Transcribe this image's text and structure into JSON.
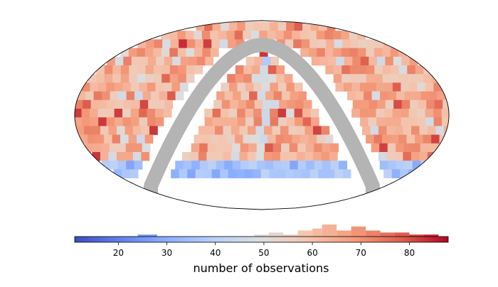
{
  "chart_data": {
    "type": "heatmap",
    "projection": "Kavrayskiy-like sky map",
    "value_range": [
      11,
      88
    ],
    "colormap": "coolwarm",
    "colorbar": {
      "label": "number of observations",
      "ticks": [
        20,
        30,
        40,
        50,
        60,
        70,
        80
      ],
      "orientation": "horizontal",
      "histogram": [
        {
          "x": 12,
          "count": 0
        },
        {
          "x": 16,
          "count": 0
        },
        {
          "x": 20,
          "count": 0
        },
        {
          "x": 24,
          "count": 1
        },
        {
          "x": 28,
          "count": 0
        },
        {
          "x": 32,
          "count": 0
        },
        {
          "x": 36,
          "count": 0
        },
        {
          "x": 40,
          "count": 0
        },
        {
          "x": 44,
          "count": 0
        },
        {
          "x": 48,
          "count": 1
        },
        {
          "x": 51,
          "count": 2
        },
        {
          "x": 54,
          "count": 1
        },
        {
          "x": 57,
          "count": 3
        },
        {
          "x": 60,
          "count": 4
        },
        {
          "x": 62,
          "count": 6
        },
        {
          "x": 65,
          "count": 3
        },
        {
          "x": 68,
          "count": 5
        },
        {
          "x": 71,
          "count": 3
        },
        {
          "x": 74,
          "count": 2
        },
        {
          "x": 77,
          "count": 2
        },
        {
          "x": 80,
          "count": 1
        },
        {
          "x": 83,
          "count": 1
        },
        {
          "x": 86,
          "count": 0
        }
      ]
    },
    "footprint": {
      "lon_range_deg": [
        -180,
        180
      ],
      "lat_range_deg": [
        -38,
        88
      ],
      "galactic_plane_mask": "grey band"
    },
    "notable_values": {
      "typical": 62,
      "southern_edge_row": 28,
      "central_column": 44,
      "hot_spot": 86
    }
  }
}
